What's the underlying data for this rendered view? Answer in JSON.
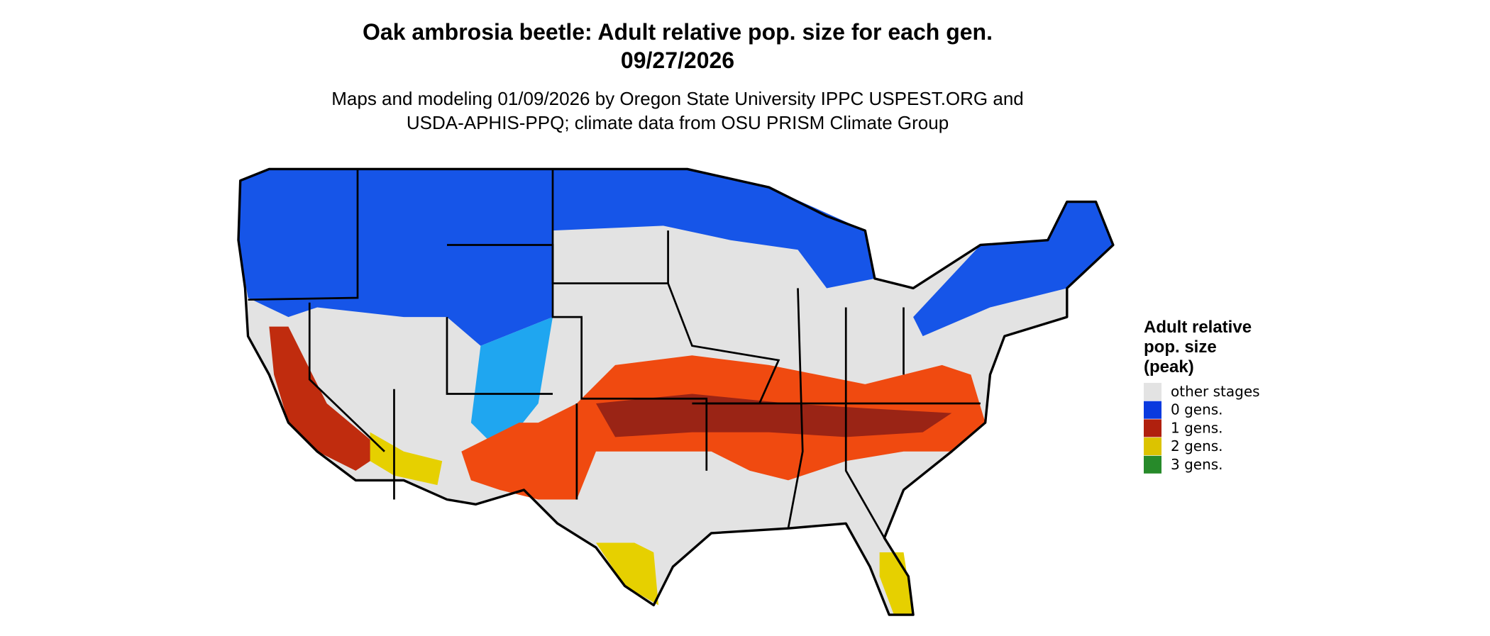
{
  "header": {
    "title": "Oak ambrosia beetle: Adult relative pop. size for each gen.",
    "date": "09/27/2026",
    "subtitle": [
      "Maps and modeling 01/09/2026 by Oregon State University IPPC USPEST.ORG and",
      "USDA-APHIS-PPQ; climate data from OSU PRISM Climate Group"
    ]
  },
  "legend": {
    "title": [
      "Adult relative",
      "pop. size",
      "(peak)"
    ],
    "items": [
      {
        "label": "other stages",
        "color": "#e3e3e3"
      },
      {
        "label": "0 gens.",
        "color": "#0a3adf"
      },
      {
        "label": "1 gens.",
        "color": "#b0200e"
      },
      {
        "label": "2 gens.",
        "color": "#dcc300"
      },
      {
        "label": "3 gens.",
        "color": "#278a2a"
      }
    ]
  }
}
